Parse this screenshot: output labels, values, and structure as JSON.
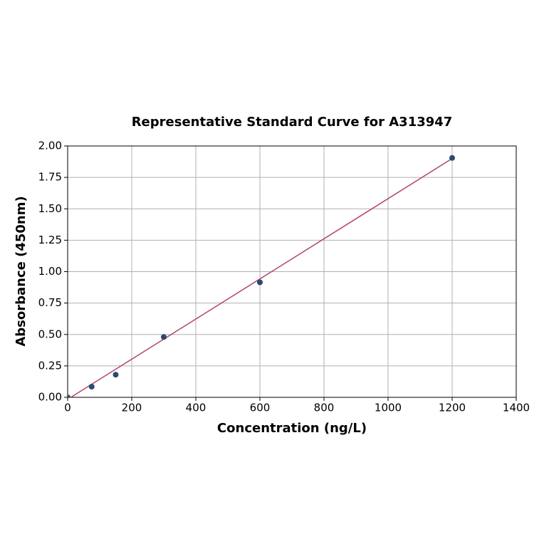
{
  "chart_data": {
    "type": "scatter",
    "title": "Representative Standard Curve for A313947",
    "x_label": "Concentration (ng/L)",
    "y_label": "Absorbance (450nm)",
    "xlim": [
      0,
      1400
    ],
    "ylim": [
      0,
      2
    ],
    "xticks": [
      0,
      200,
      400,
      600,
      800,
      1000,
      1200,
      1400
    ],
    "yticks": [
      {
        "value": 0,
        "label": "0.00"
      },
      {
        "value": 0.25,
        "label": "0.25"
      },
      {
        "value": 0.5,
        "label": "0.50"
      },
      {
        "value": 0.75,
        "label": "0.75"
      },
      {
        "value": 1,
        "label": "1.00"
      },
      {
        "value": 1.25,
        "label": "1.25"
      },
      {
        "value": 1.5,
        "label": "1.50"
      },
      {
        "value": 1.75,
        "label": "1.75"
      },
      {
        "value": 2,
        "label": "2.00"
      }
    ],
    "grid": true,
    "series": [
      {
        "type": "line",
        "color": "#b5446a",
        "x": [
          10,
          1200
        ],
        "values": [
          0,
          1.9
        ]
      },
      {
        "type": "scatter",
        "color": "#2b4a6e",
        "x": [
          0,
          75,
          150,
          300,
          600,
          1200
        ],
        "values": [
          0,
          0.085,
          0.18,
          0.48,
          0.915,
          1.905
        ]
      }
    ]
  }
}
